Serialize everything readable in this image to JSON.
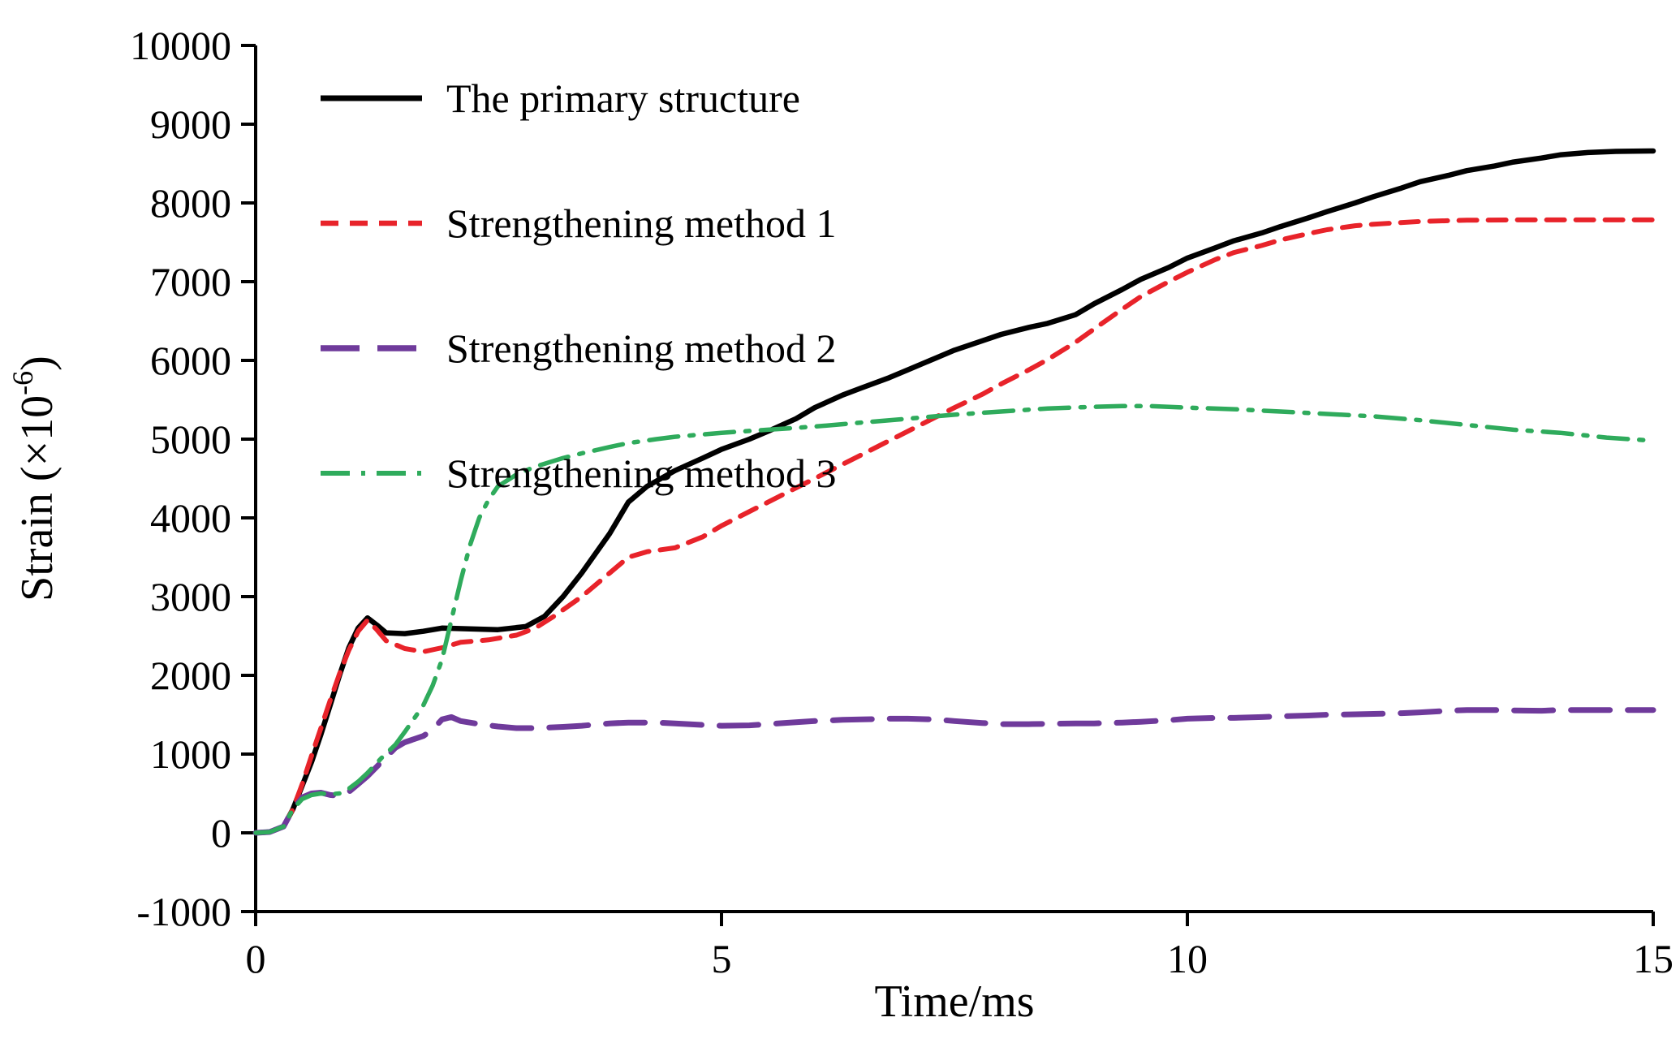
{
  "chart_data": {
    "type": "line",
    "title": "",
    "xlabel": "Time/ms",
    "ylabel": {
      "prefix": "Strain (×10",
      "superscript": "-6",
      "suffix": ")"
    },
    "xlim": [
      0,
      15
    ],
    "ylim": [
      -1000,
      10000
    ],
    "x_ticks": [
      0,
      5,
      10,
      15
    ],
    "y_ticks": [
      -1000,
      0,
      1000,
      2000,
      3000,
      4000,
      5000,
      6000,
      7000,
      8000,
      9000,
      10000
    ],
    "grid": false,
    "legend_position": "top-left-inside",
    "series": [
      {
        "id": "primary-structure",
        "name": "The primary structure",
        "color": "#000000",
        "style": "solid",
        "dash": "",
        "width": 6.5,
        "points": [
          [
            0,
            0
          ],
          [
            0.15,
            10
          ],
          [
            0.3,
            80
          ],
          [
            0.4,
            300
          ],
          [
            0.5,
            600
          ],
          [
            0.6,
            900
          ],
          [
            0.7,
            1250
          ],
          [
            0.8,
            1620
          ],
          [
            0.9,
            2000
          ],
          [
            1.0,
            2350
          ],
          [
            1.1,
            2600
          ],
          [
            1.2,
            2730
          ],
          [
            1.3,
            2640
          ],
          [
            1.4,
            2540
          ],
          [
            1.6,
            2530
          ],
          [
            1.8,
            2560
          ],
          [
            2.0,
            2600
          ],
          [
            2.3,
            2590
          ],
          [
            2.6,
            2580
          ],
          [
            2.9,
            2620
          ],
          [
            3.1,
            2750
          ],
          [
            3.3,
            3000
          ],
          [
            3.5,
            3300
          ],
          [
            3.8,
            3800
          ],
          [
            4.0,
            4200
          ],
          [
            4.2,
            4400
          ],
          [
            4.5,
            4600
          ],
          [
            4.8,
            4760
          ],
          [
            5.0,
            4870
          ],
          [
            5.3,
            5000
          ],
          [
            5.5,
            5100
          ],
          [
            5.8,
            5260
          ],
          [
            6.0,
            5400
          ],
          [
            6.3,
            5560
          ],
          [
            6.5,
            5650
          ],
          [
            6.8,
            5780
          ],
          [
            7.0,
            5880
          ],
          [
            7.3,
            6030
          ],
          [
            7.5,
            6130
          ],
          [
            7.8,
            6250
          ],
          [
            8.0,
            6330
          ],
          [
            8.3,
            6420
          ],
          [
            8.5,
            6470
          ],
          [
            8.8,
            6580
          ],
          [
            9.0,
            6720
          ],
          [
            9.3,
            6900
          ],
          [
            9.5,
            7030
          ],
          [
            9.8,
            7180
          ],
          [
            10.0,
            7300
          ],
          [
            10.3,
            7430
          ],
          [
            10.5,
            7520
          ],
          [
            10.8,
            7620
          ],
          [
            11.0,
            7700
          ],
          [
            11.3,
            7810
          ],
          [
            11.5,
            7890
          ],
          [
            11.8,
            8000
          ],
          [
            12.0,
            8080
          ],
          [
            12.3,
            8190
          ],
          [
            12.5,
            8270
          ],
          [
            12.8,
            8350
          ],
          [
            13.0,
            8410
          ],
          [
            13.3,
            8470
          ],
          [
            13.5,
            8520
          ],
          [
            13.8,
            8570
          ],
          [
            14.0,
            8610
          ],
          [
            14.3,
            8640
          ],
          [
            14.6,
            8655
          ],
          [
            15.0,
            8660
          ]
        ]
      },
      {
        "id": "strengthening-method-1",
        "name": "Strengthening method 1",
        "color": "#e8232a",
        "style": "dashed",
        "dash": "22 14",
        "width": 6,
        "points": [
          [
            0,
            0
          ],
          [
            0.15,
            10
          ],
          [
            0.3,
            80
          ],
          [
            0.4,
            300
          ],
          [
            0.5,
            620
          ],
          [
            0.6,
            980
          ],
          [
            0.7,
            1330
          ],
          [
            0.8,
            1680
          ],
          [
            0.9,
            2020
          ],
          [
            1.0,
            2320
          ],
          [
            1.1,
            2560
          ],
          [
            1.2,
            2700
          ],
          [
            1.3,
            2580
          ],
          [
            1.4,
            2440
          ],
          [
            1.6,
            2340
          ],
          [
            1.8,
            2300
          ],
          [
            2.0,
            2350
          ],
          [
            2.2,
            2420
          ],
          [
            2.5,
            2450
          ],
          [
            2.8,
            2510
          ],
          [
            3.0,
            2600
          ],
          [
            3.2,
            2750
          ],
          [
            3.5,
            3000
          ],
          [
            3.8,
            3300
          ],
          [
            4.0,
            3500
          ],
          [
            4.2,
            3570
          ],
          [
            4.5,
            3620
          ],
          [
            4.8,
            3760
          ],
          [
            5.0,
            3900
          ],
          [
            5.3,
            4080
          ],
          [
            5.5,
            4200
          ],
          [
            5.8,
            4380
          ],
          [
            6.0,
            4500
          ],
          [
            6.3,
            4680
          ],
          [
            6.5,
            4800
          ],
          [
            6.8,
            4980
          ],
          [
            7.0,
            5100
          ],
          [
            7.3,
            5280
          ],
          [
            7.5,
            5400
          ],
          [
            7.8,
            5570
          ],
          [
            8.0,
            5700
          ],
          [
            8.3,
            5880
          ],
          [
            8.5,
            6010
          ],
          [
            8.8,
            6230
          ],
          [
            9.0,
            6400
          ],
          [
            9.3,
            6650
          ],
          [
            9.5,
            6810
          ],
          [
            9.8,
            7000
          ],
          [
            10.0,
            7120
          ],
          [
            10.3,
            7280
          ],
          [
            10.5,
            7370
          ],
          [
            10.8,
            7460
          ],
          [
            11.0,
            7530
          ],
          [
            11.3,
            7610
          ],
          [
            11.5,
            7660
          ],
          [
            11.8,
            7710
          ],
          [
            12.0,
            7730
          ],
          [
            12.5,
            7765
          ],
          [
            13.0,
            7780
          ],
          [
            13.5,
            7785
          ],
          [
            14.0,
            7785
          ],
          [
            14.5,
            7785
          ],
          [
            15.0,
            7785
          ]
        ]
      },
      {
        "id": "strengthening-method-2",
        "name": "Strengthening method 2",
        "color": "#6f3a9b",
        "style": "long-dash",
        "dash": "48 22",
        "width": 7,
        "points": [
          [
            0,
            0
          ],
          [
            0.15,
            10
          ],
          [
            0.3,
            80
          ],
          [
            0.4,
            300
          ],
          [
            0.5,
            450
          ],
          [
            0.6,
            500
          ],
          [
            0.7,
            510
          ],
          [
            0.8,
            480
          ],
          [
            0.9,
            470
          ],
          [
            1.0,
            520
          ],
          [
            1.1,
            620
          ],
          [
            1.2,
            720
          ],
          [
            1.35,
            900
          ],
          [
            1.5,
            1080
          ],
          [
            1.6,
            1150
          ],
          [
            1.8,
            1230
          ],
          [
            1.9,
            1310
          ],
          [
            2.0,
            1440
          ],
          [
            2.1,
            1470
          ],
          [
            2.2,
            1420
          ],
          [
            2.4,
            1380
          ],
          [
            2.6,
            1350
          ],
          [
            2.8,
            1330
          ],
          [
            3.0,
            1330
          ],
          [
            3.3,
            1345
          ],
          [
            3.5,
            1360
          ],
          [
            3.8,
            1390
          ],
          [
            4.0,
            1400
          ],
          [
            4.3,
            1400
          ],
          [
            4.5,
            1390
          ],
          [
            4.8,
            1370
          ],
          [
            5.0,
            1360
          ],
          [
            5.3,
            1365
          ],
          [
            5.5,
            1380
          ],
          [
            5.8,
            1405
          ],
          [
            6.0,
            1420
          ],
          [
            6.3,
            1435
          ],
          [
            6.5,
            1440
          ],
          [
            6.8,
            1450
          ],
          [
            7.0,
            1450
          ],
          [
            7.3,
            1440
          ],
          [
            7.5,
            1420
          ],
          [
            7.8,
            1395
          ],
          [
            8.0,
            1380
          ],
          [
            8.3,
            1380
          ],
          [
            8.5,
            1385
          ],
          [
            8.8,
            1390
          ],
          [
            9.0,
            1390
          ],
          [
            9.3,
            1400
          ],
          [
            9.5,
            1410
          ],
          [
            9.8,
            1430
          ],
          [
            10.0,
            1450
          ],
          [
            10.3,
            1460
          ],
          [
            10.5,
            1460
          ],
          [
            10.8,
            1470
          ],
          [
            11.0,
            1480
          ],
          [
            11.3,
            1490
          ],
          [
            11.5,
            1500
          ],
          [
            11.8,
            1505
          ],
          [
            12.0,
            1510
          ],
          [
            12.3,
            1520
          ],
          [
            12.5,
            1530
          ],
          [
            12.8,
            1550
          ],
          [
            13.0,
            1560
          ],
          [
            13.3,
            1560
          ],
          [
            13.5,
            1555
          ],
          [
            13.8,
            1550
          ],
          [
            14.0,
            1560
          ],
          [
            14.5,
            1560
          ],
          [
            15.0,
            1560
          ]
        ]
      },
      {
        "id": "strengthening-method-3",
        "name": "Strengthening method 3",
        "color": "#2fab5c",
        "style": "dash-dot",
        "dash": "36 14 5 14",
        "width": 5.5,
        "points": [
          [
            0,
            0
          ],
          [
            0.15,
            10
          ],
          [
            0.3,
            80
          ],
          [
            0.4,
            300
          ],
          [
            0.5,
            430
          ],
          [
            0.6,
            480
          ],
          [
            0.7,
            500
          ],
          [
            0.8,
            490
          ],
          [
            0.9,
            500
          ],
          [
            1.0,
            560
          ],
          [
            1.1,
            650
          ],
          [
            1.2,
            760
          ],
          [
            1.35,
            950
          ],
          [
            1.5,
            1120
          ],
          [
            1.6,
            1280
          ],
          [
            1.8,
            1620
          ],
          [
            1.9,
            1870
          ],
          [
            2.0,
            2200
          ],
          [
            2.1,
            2700
          ],
          [
            2.2,
            3200
          ],
          [
            2.3,
            3650
          ],
          [
            2.4,
            4000
          ],
          [
            2.5,
            4230
          ],
          [
            2.6,
            4400
          ],
          [
            2.8,
            4550
          ],
          [
            3.0,
            4650
          ],
          [
            3.3,
            4760
          ],
          [
            3.5,
            4820
          ],
          [
            3.8,
            4900
          ],
          [
            4.0,
            4950
          ],
          [
            4.3,
            5000
          ],
          [
            4.5,
            5030
          ],
          [
            4.8,
            5060
          ],
          [
            5.0,
            5080
          ],
          [
            5.5,
            5120
          ],
          [
            6.0,
            5160
          ],
          [
            6.5,
            5210
          ],
          [
            7.0,
            5260
          ],
          [
            7.5,
            5310
          ],
          [
            8.0,
            5350
          ],
          [
            8.5,
            5390
          ],
          [
            9.0,
            5410
          ],
          [
            9.3,
            5420
          ],
          [
            9.6,
            5420
          ],
          [
            10.0,
            5400
          ],
          [
            10.5,
            5380
          ],
          [
            11.0,
            5350
          ],
          [
            11.5,
            5320
          ],
          [
            12.0,
            5290
          ],
          [
            12.5,
            5240
          ],
          [
            13.0,
            5180
          ],
          [
            13.5,
            5120
          ],
          [
            14.0,
            5080
          ],
          [
            14.5,
            5020
          ],
          [
            15.0,
            4980
          ]
        ]
      }
    ]
  }
}
